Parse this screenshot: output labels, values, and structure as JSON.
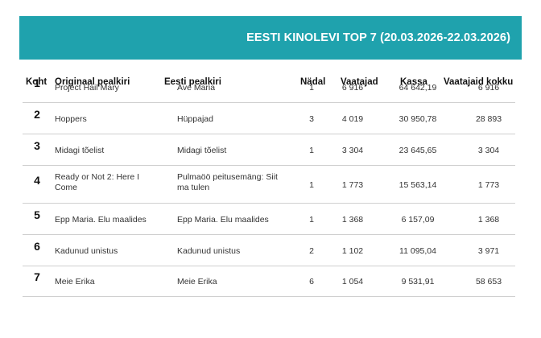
{
  "header": {
    "title": "EESTI KINOLEVI TOP 7 (20.03.2026-22.03.2026)"
  },
  "columns": {
    "rank": "Koht",
    "original": "Originaal pealkiri",
    "estonian": "Eesti pealkiri",
    "week": "Nädal",
    "viewers": "Vaatajad",
    "box": "Kassa",
    "total": "Vaatajaid kokku"
  },
  "rows": [
    {
      "rank": "1",
      "original": "Project Hail Mary",
      "estonian": "Ave Maria",
      "week": "1",
      "viewers": "6 916",
      "box": "64 642,19",
      "total": "6 916"
    },
    {
      "rank": "2",
      "original": "Hoppers",
      "estonian": "Hüppajad",
      "week": "3",
      "viewers": "4 019",
      "box": "30 950,78",
      "total": "28 893"
    },
    {
      "rank": "3",
      "original": "Midagi tõelist",
      "estonian": "Midagi tõelist",
      "week": "1",
      "viewers": "3 304",
      "box": "23 645,65",
      "total": "3 304"
    },
    {
      "rank": "4",
      "original": "Ready or Not 2: Here I Come",
      "estonian": "Pulmaöö peitusemäng: Siit ma tulen",
      "week": "1",
      "viewers": "1 773",
      "box": "15 563,14",
      "total": "1 773"
    },
    {
      "rank": "5",
      "original": "Epp Maria. Elu maalides",
      "estonian": "Epp Maria. Elu maalides",
      "week": "1",
      "viewers": "1 368",
      "box": "6 157,09",
      "total": "1 368"
    },
    {
      "rank": "6",
      "original": "Kadunud unistus",
      "estonian": "Kadunud unistus",
      "week": "2",
      "viewers": "1 102",
      "box": "11 095,04",
      "total": "3 971"
    },
    {
      "rank": "7",
      "original": "Meie Erika",
      "estonian": "Meie Erika",
      "week": "6",
      "viewers": "1 054",
      "box": "9 531,91",
      "total": "58 653"
    }
  ],
  "colors": {
    "banner": "#1fa2ad",
    "banner_text": "#ffffff",
    "separator": "#cfcfcf"
  }
}
